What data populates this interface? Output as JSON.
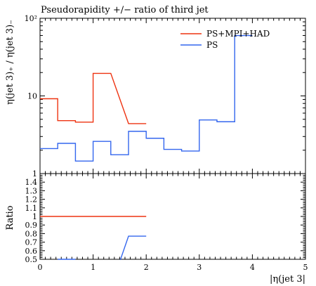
{
  "chart_data": [
    {
      "type": "line",
      "panel": "main",
      "title": "Pseudorapidity +/− ratio of third jet",
      "ylabel": "η(jet 3)₊ / η(jet 3)₋",
      "xlim": [
        0,
        5
      ],
      "ylim": [
        1,
        100
      ],
      "yscale": "log",
      "y_tick_labels": [
        "1",
        "10",
        "10²"
      ],
      "legend_position": "top-right",
      "grid": false,
      "series": [
        {
          "name": "PS+MPI+HAD",
          "color": "#ee3311",
          "edges": [
            0,
            0.333,
            0.667,
            1.0,
            1.333,
            1.667,
            2.0
          ],
          "values": [
            9.2,
            4.8,
            4.6,
            19.5,
            null,
            4.4
          ],
          "connect": "line"
        },
        {
          "name": "PS",
          "color": "#3366ee",
          "edges": [
            0,
            0.333,
            0.667,
            1.0,
            1.333,
            1.667,
            2.0,
            2.333,
            2.667,
            3.0,
            3.333,
            3.667,
            4.0
          ],
          "values": [
            2.1,
            2.45,
            1.45,
            2.6,
            1.75,
            3.5,
            2.85,
            2.05,
            1.95,
            4.9,
            4.65,
            60
          ],
          "connect": "step"
        }
      ]
    },
    {
      "type": "line",
      "panel": "ratio",
      "ylabel": "Ratio",
      "xlabel": "|η(jet 3|",
      "xlim": [
        0,
        5
      ],
      "ylim": [
        0.5,
        1.5
      ],
      "x_tick_labels": [
        "0",
        "1",
        "2",
        "3",
        "4",
        "5"
      ],
      "y_tick_labels": [
        "0.5",
        "0.6",
        "0.7",
        "0.8",
        "0.9",
        "1",
        "1.1",
        "1.2",
        "1.3",
        "1.4"
      ],
      "series": [
        {
          "name": "PS+MPI+HAD",
          "color": "#ee3311",
          "x": [
            0,
            2.0
          ],
          "y": [
            1.0,
            1.0
          ]
        },
        {
          "name": "PS",
          "color": "#3366ee",
          "segments": [
            {
              "x": [
                0.333,
                0.667
              ],
              "y": [
                0.5,
                0.5
              ]
            },
            {
              "x": [
                1.5,
                1.667,
                2.0
              ],
              "y": [
                0.47,
                0.77,
                0.77
              ]
            }
          ]
        }
      ]
    }
  ]
}
